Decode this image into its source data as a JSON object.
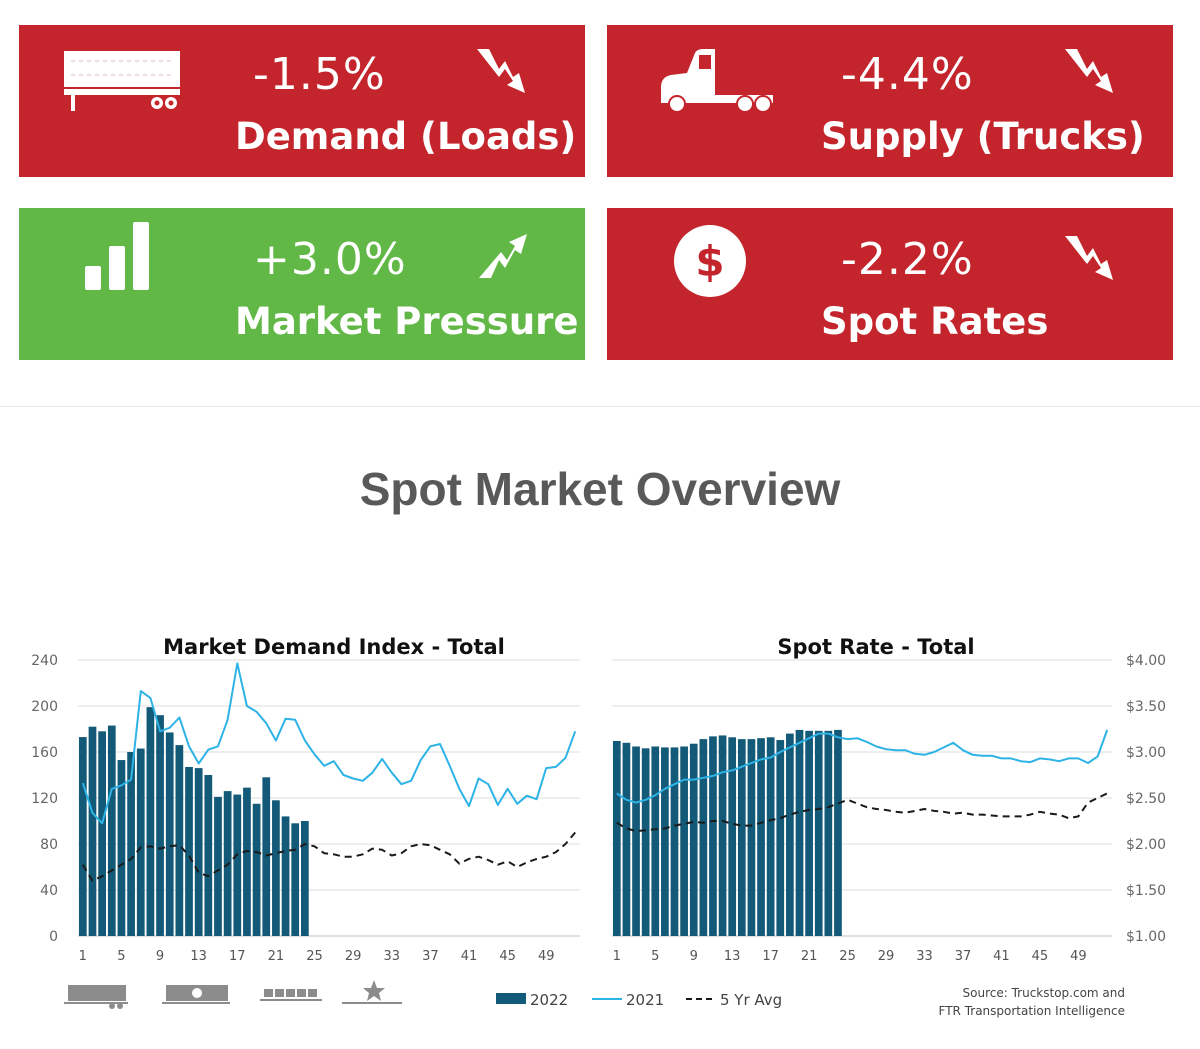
{
  "colors": {
    "decline": "#c4242b",
    "increase": "#62b846",
    "bar2022": "#125a78",
    "line2021": "#2eb3e6",
    "avg5": "#1a1a1a"
  },
  "tiles": [
    {
      "value": "-1.5%",
      "label": "Demand (Loads)",
      "icon": "trailer-icon",
      "arrow": "trend-down-icon",
      "color": "#c4242b"
    },
    {
      "value": "-4.4%",
      "label": "Supply (Trucks)",
      "icon": "truck-icon",
      "arrow": "trend-down-icon",
      "color": "#c4242b"
    },
    {
      "value": "+3.0%",
      "label": "Market Pressure",
      "icon": "bar-chart-icon",
      "arrow": "trend-up-icon",
      "color": "#62b846"
    },
    {
      "value": "-2.2%",
      "label": "Spot Rates",
      "icon": "dollar-icon",
      "arrow": "trend-down-icon",
      "color": "#c4242b"
    }
  ],
  "section_title": "Spot Market Overview",
  "chart_data": [
    {
      "type": "bar",
      "title": "Market Demand Index - Total",
      "y_axis": "left",
      "ylim": [
        0,
        240
      ],
      "yticks": [
        "240",
        "200",
        "160",
        "120",
        "80",
        "40",
        "0"
      ],
      "xticks": [
        "1",
        "5",
        "9",
        "13",
        "17",
        "21",
        "25",
        "29",
        "33",
        "37",
        "41",
        "45",
        "49"
      ],
      "xlim": [
        1,
        52
      ],
      "grid": true,
      "series": [
        {
          "name": "2022",
          "type": "bar",
          "x": [
            1,
            2,
            3,
            4,
            5,
            6,
            7,
            8,
            9,
            10,
            11,
            12,
            13,
            14,
            15,
            16,
            17,
            18,
            19,
            20,
            21,
            22,
            23,
            24
          ],
          "values": [
            173,
            182,
            178,
            183,
            153,
            160,
            163,
            199,
            192,
            177,
            166,
            147,
            146,
            140,
            121,
            126,
            123,
            129,
            115,
            138,
            118,
            104,
            98,
            100
          ]
        },
        {
          "name": "2021",
          "type": "line",
          "x": [
            1,
            2,
            3,
            4,
            5,
            6,
            7,
            8,
            9,
            10,
            11,
            12,
            13,
            14,
            15,
            16,
            17,
            18,
            19,
            20,
            21,
            22,
            23,
            24,
            25,
            26,
            27,
            28,
            29,
            30,
            31,
            32,
            33,
            34,
            35,
            36,
            37,
            38,
            39,
            40,
            41,
            42,
            43,
            44,
            45,
            46,
            47,
            48,
            49,
            50,
            51,
            52
          ],
          "values": [
            133,
            107,
            98,
            128,
            131,
            136,
            213,
            207,
            178,
            181,
            190,
            165,
            150,
            162,
            165,
            188,
            237,
            200,
            195,
            185,
            170,
            189,
            188,
            170,
            158,
            148,
            152,
            140,
            137,
            135,
            142,
            154,
            142,
            132,
            135,
            153,
            165,
            167,
            148,
            128,
            113,
            137,
            132,
            114,
            128,
            115,
            122,
            119,
            146,
            147,
            155,
            178
          ]
        },
        {
          "name": "5 Yr Avg",
          "type": "line",
          "dash": true,
          "x": [
            1,
            2,
            3,
            4,
            5,
            6,
            7,
            8,
            9,
            10,
            11,
            12,
            13,
            14,
            15,
            16,
            17,
            18,
            19,
            20,
            21,
            22,
            23,
            24,
            25,
            26,
            27,
            28,
            29,
            30,
            31,
            32,
            33,
            34,
            35,
            36,
            37,
            38,
            39,
            40,
            41,
            42,
            43,
            44,
            45,
            46,
            47,
            48,
            49,
            50,
            51,
            52
          ],
          "values": [
            62,
            48,
            52,
            57,
            62,
            67,
            77,
            78,
            76,
            78,
            79,
            70,
            55,
            52,
            57,
            62,
            71,
            74,
            73,
            70,
            72,
            74,
            75,
            80,
            78,
            72,
            71,
            69,
            69,
            71,
            76,
            75,
            70,
            72,
            78,
            80,
            79,
            75,
            71,
            63,
            67,
            69,
            66,
            62,
            65,
            60,
            64,
            67,
            69,
            73,
            80,
            90
          ]
        }
      ]
    },
    {
      "type": "bar",
      "title": "Spot Rate - Total",
      "y_axis": "right",
      "ylim": [
        1.0,
        4.0
      ],
      "yticks": [
        "$4.00",
        "$3.50",
        "$3.00",
        "$2.50",
        "$2.00",
        "$1.50",
        "$1.00"
      ],
      "xticks": [
        "1",
        "5",
        "9",
        "13",
        "17",
        "21",
        "25",
        "29",
        "33",
        "37",
        "41",
        "45",
        "49"
      ],
      "xlim": [
        1,
        52
      ],
      "grid": true,
      "series": [
        {
          "name": "2022",
          "type": "bar",
          "x": [
            1,
            2,
            3,
            4,
            5,
            6,
            7,
            8,
            9,
            10,
            11,
            12,
            13,
            14,
            15,
            16,
            17,
            18,
            19,
            20,
            21,
            22,
            23,
            24
          ],
          "values": [
            3.12,
            3.1,
            3.06,
            3.04,
            3.06,
            3.05,
            3.05,
            3.06,
            3.09,
            3.14,
            3.17,
            3.18,
            3.16,
            3.14,
            3.14,
            3.15,
            3.16,
            3.13,
            3.2,
            3.24,
            3.23,
            3.23,
            3.23,
            3.24
          ]
        },
        {
          "name": "2021",
          "type": "line",
          "x": [
            1,
            2,
            3,
            4,
            5,
            6,
            7,
            8,
            9,
            10,
            11,
            12,
            13,
            14,
            15,
            16,
            17,
            18,
            19,
            20,
            21,
            22,
            23,
            24,
            25,
            26,
            27,
            28,
            29,
            30,
            31,
            32,
            33,
            34,
            35,
            36,
            37,
            38,
            39,
            40,
            41,
            42,
            43,
            44,
            45,
            46,
            47,
            48,
            49,
            50,
            51,
            52
          ],
          "values": [
            2.55,
            2.48,
            2.45,
            2.48,
            2.53,
            2.6,
            2.65,
            2.7,
            2.7,
            2.72,
            2.74,
            2.78,
            2.8,
            2.84,
            2.88,
            2.92,
            2.94,
            3.0,
            3.05,
            3.1,
            3.15,
            3.2,
            3.2,
            3.16,
            3.14,
            3.15,
            3.11,
            3.06,
            3.03,
            3.02,
            3.02,
            2.98,
            2.97,
            3.0,
            3.05,
            3.1,
            3.02,
            2.97,
            2.96,
            2.96,
            2.93,
            2.93,
            2.9,
            2.89,
            2.93,
            2.92,
            2.9,
            2.93,
            2.93,
            2.88,
            2.95,
            3.24
          ]
        },
        {
          "name": "5 Yr Avg",
          "type": "line",
          "dash": true,
          "x": [
            1,
            2,
            3,
            4,
            5,
            6,
            7,
            8,
            9,
            10,
            11,
            12,
            13,
            14,
            15,
            16,
            17,
            18,
            19,
            20,
            21,
            22,
            23,
            24,
            25,
            26,
            27,
            28,
            29,
            30,
            31,
            32,
            33,
            34,
            35,
            36,
            37,
            38,
            39,
            40,
            41,
            42,
            43,
            44,
            45,
            46,
            47,
            48,
            49,
            50,
            51,
            52
          ],
          "values": [
            2.23,
            2.17,
            2.14,
            2.15,
            2.16,
            2.17,
            2.2,
            2.22,
            2.24,
            2.23,
            2.25,
            2.25,
            2.22,
            2.2,
            2.2,
            2.23,
            2.26,
            2.28,
            2.32,
            2.35,
            2.37,
            2.38,
            2.4,
            2.44,
            2.48,
            2.44,
            2.4,
            2.38,
            2.37,
            2.35,
            2.34,
            2.36,
            2.38,
            2.36,
            2.35,
            2.33,
            2.34,
            2.32,
            2.32,
            2.31,
            2.3,
            2.3,
            2.3,
            2.32,
            2.35,
            2.33,
            2.32,
            2.28,
            2.3,
            2.45,
            2.5,
            2.55
          ]
        }
      ]
    }
  ],
  "legend": [
    {
      "label": "2022",
      "style": "bar",
      "color": "#125a78"
    },
    {
      "label": "2021",
      "style": "line",
      "color": "#2eb3e6"
    },
    {
      "label": "5 Yr Avg",
      "style": "dash",
      "color": "#1a1a1a"
    }
  ],
  "footer_icons": [
    "trailer-icon",
    "reefer-trailer-icon",
    "flatbed-icon",
    "specialized-star-icon"
  ],
  "source": {
    "line1": "Source: Truckstop.com and",
    "line2": "FTR Transportation Intelligence"
  }
}
